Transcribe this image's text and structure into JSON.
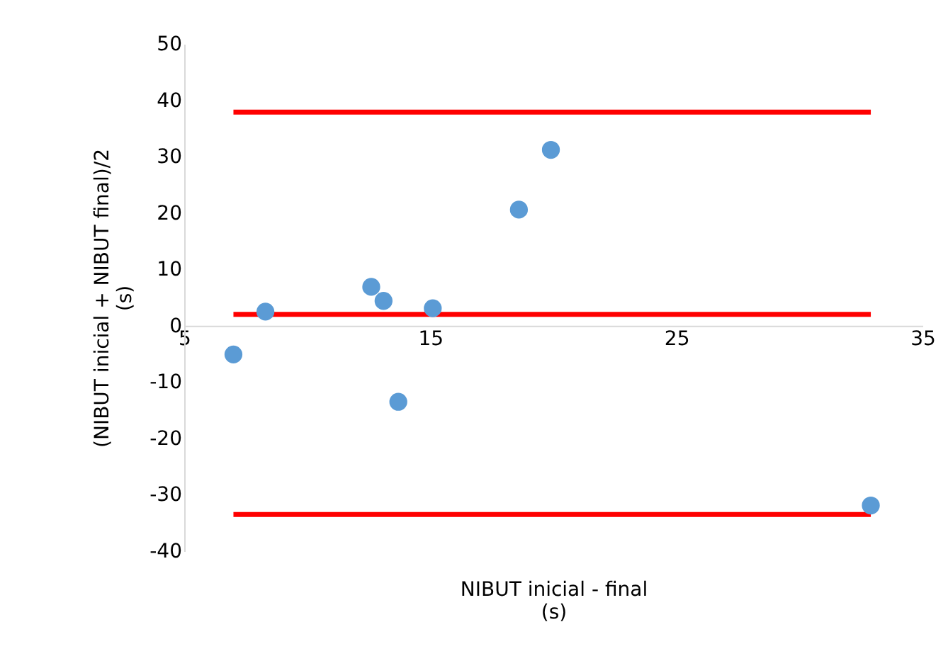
{
  "chart_data": {
    "type": "scatter",
    "xlabel": "NIBUT inicial - final\n(s)",
    "ylabel": "(NIBUT inicial + NIBUT final)/2\n(s)",
    "xlim": [
      5,
      35
    ],
    "xticks": [
      5,
      15,
      25,
      35
    ],
    "ylim": [
      -40,
      50
    ],
    "yticks": [
      -40,
      -30,
      -20,
      -10,
      0,
      10,
      20,
      30,
      40,
      50
    ],
    "grid": false,
    "series": [
      {
        "type": "line",
        "marker": "none",
        "color": "#ff0000",
        "x": [
          7.0,
          32.9
        ],
        "values": [
          37.9,
          37.9
        ]
      },
      {
        "type": "line",
        "marker": "none",
        "color": "#ff0000",
        "x": [
          7.0,
          32.9
        ],
        "values": [
          2.0,
          2.0
        ]
      },
      {
        "type": "line",
        "marker": "none",
        "color": "#ff0000",
        "x": [
          7.0,
          32.9
        ],
        "values": [
          -33.5,
          -33.5
        ]
      },
      {
        "marker": "circle",
        "color": "#5b9bd5",
        "x": [
          7.0,
          8.3,
          12.6,
          13.1,
          13.7,
          15.1,
          18.6,
          19.9,
          32.9
        ],
        "values": [
          -5.1,
          2.5,
          6.9,
          4.4,
          -13.5,
          3.1,
          20.6,
          31.2,
          -31.9
        ]
      }
    ]
  }
}
